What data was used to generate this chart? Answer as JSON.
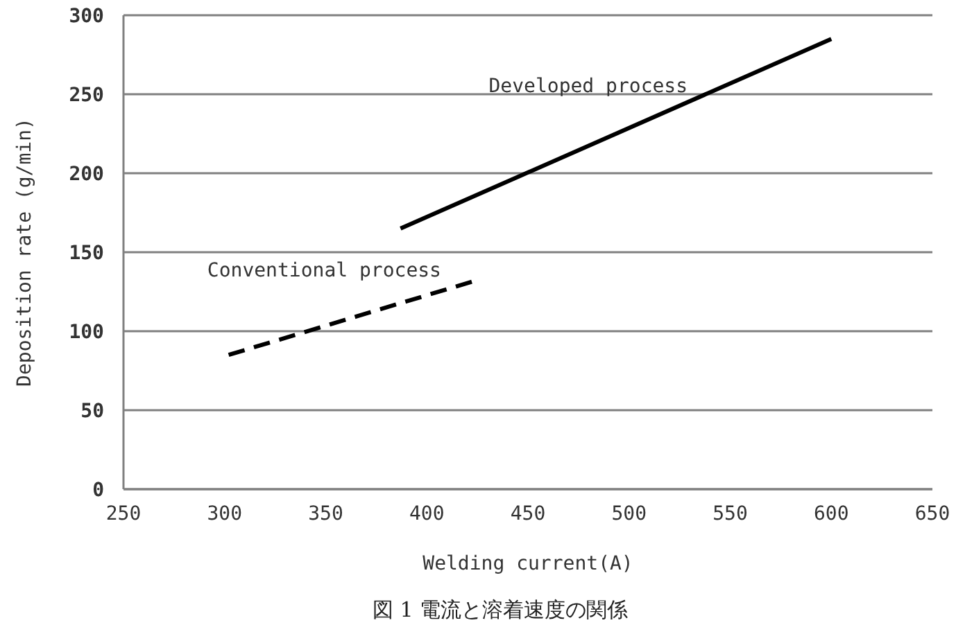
{
  "chart_data": {
    "type": "line",
    "xlabel": "Welding current(A)",
    "ylabel": "Deposition rate (g/min)",
    "annotations": [
      "図 1 電流と溶着速度の関係"
    ],
    "xlim": [
      250,
      650
    ],
    "xticks": [
      250,
      300,
      350,
      400,
      450,
      500,
      550,
      600,
      650
    ],
    "ylim": [
      0,
      300
    ],
    "yticks": [
      0,
      50,
      100,
      150,
      200,
      250,
      300
    ],
    "grid": "y",
    "series": [
      {
        "name": "Developed process",
        "color": "#000000",
        "line_style": "solid",
        "x": [
          387,
          600
        ],
        "values": [
          165,
          285
        ]
      },
      {
        "name": "Conventional process",
        "color": "#000000",
        "line_style": "dashed",
        "x": [
          302,
          424
        ],
        "values": [
          85,
          132
        ]
      }
    ]
  }
}
